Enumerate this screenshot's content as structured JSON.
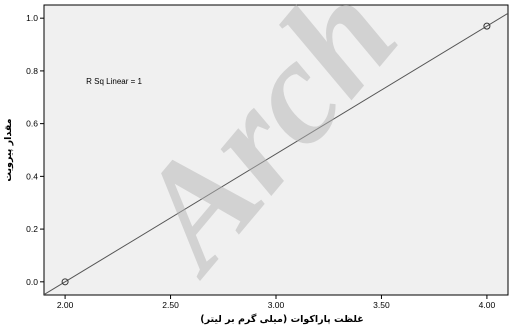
{
  "chart_data": {
    "type": "scatter",
    "title": "",
    "xlabel": "غلظت پاراکوات (میلی گرم بر لیتر)",
    "ylabel": "مقدار پیرویت",
    "xlim": [
      1.9,
      4.1
    ],
    "ylim": [
      -0.05,
      1.05
    ],
    "x_ticks": [
      2.0,
      2.5,
      3.0,
      3.5,
      4.0
    ],
    "x_tick_labels": [
      "2.00",
      "2.50",
      "3.00",
      "3.50",
      "4.00"
    ],
    "y_ticks": [
      0.0,
      0.2,
      0.4,
      0.6,
      0.8,
      1.0
    ],
    "y_tick_labels": [
      "0.0",
      "0.2",
      "0.4",
      "0.6",
      "0.8",
      "1.0"
    ],
    "grid": false,
    "points": [
      {
        "x": 2.0,
        "y": 0.0
      },
      {
        "x": 4.0,
        "y": 0.97
      }
    ],
    "fit_line": {
      "type": "linear",
      "x": [
        1.9,
        4.1
      ],
      "y": [
        -0.0485,
        1.0185
      ]
    },
    "annotations": [
      {
        "text": "R Sq Linear = 1",
        "x": 2.1,
        "y": 0.75
      }
    ],
    "colors": {
      "plot_background": "#f0f0f0",
      "line": "#555555",
      "points": "#333333"
    }
  },
  "watermark": {
    "text": "Arch",
    "color": "#b3b3b3"
  }
}
